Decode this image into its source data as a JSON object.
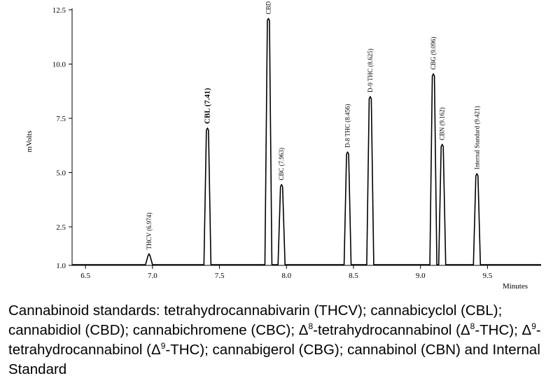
{
  "chart_data": {
    "type": "line",
    "xlabel": "Minutes",
    "ylabel": "mVolts",
    "xlim": [
      6.4,
      9.9
    ],
    "ylim": [
      1.0,
      13.0
    ],
    "x_ticks": [
      "6.5",
      "7.0",
      "7.5",
      "8.0",
      "8.5",
      "9.0",
      "9.5"
    ],
    "y_ticks": [
      "1.0",
      "2.5",
      "5.0",
      "7.5",
      "10.0",
      "12.5"
    ],
    "grid": false,
    "baseline": 1.0,
    "peaks": [
      {
        "name": "THCV (6.974)",
        "x": 6.974,
        "y": 1.45
      },
      {
        "name": "CBL (7.41)",
        "x": 7.41,
        "y": 7.05
      },
      {
        "name": "CBD (7.865)",
        "x": 7.865,
        "y": 12.1
      },
      {
        "name": "CBC (7.963)",
        "x": 7.963,
        "y": 4.45
      },
      {
        "name": "D-8 THC (8.456)",
        "x": 8.456,
        "y": 5.95
      },
      {
        "name": "D-9 THC (8.625)",
        "x": 8.625,
        "y": 8.5
      },
      {
        "name": "CBG (9.096)",
        "x": 9.096,
        "y": 9.55
      },
      {
        "name": "CBN (9.162)",
        "x": 9.162,
        "y": 6.3
      },
      {
        "name": "Internal Standard (9.421)",
        "x": 9.421,
        "y": 4.95
      }
    ]
  },
  "caption": {
    "p1": "Cannabinoid standards: tetrahydrocannabivarin (THCV); cannabicyclol (CBL); cannabidiol (CBD); cannabichromene (CBC); Δ",
    "sup8": "8",
    "p2": "-tetrahydrocannabinol (Δ",
    "sup8b": "8",
    "p3": "-THC); Δ",
    "sup9": "9",
    "p4": "-tetrahydrocannabinol (Δ",
    "sup9b": "9",
    "p5": "-THC); cannabigerol (CBG); cannabinol (CBN) and Internal Standard"
  }
}
